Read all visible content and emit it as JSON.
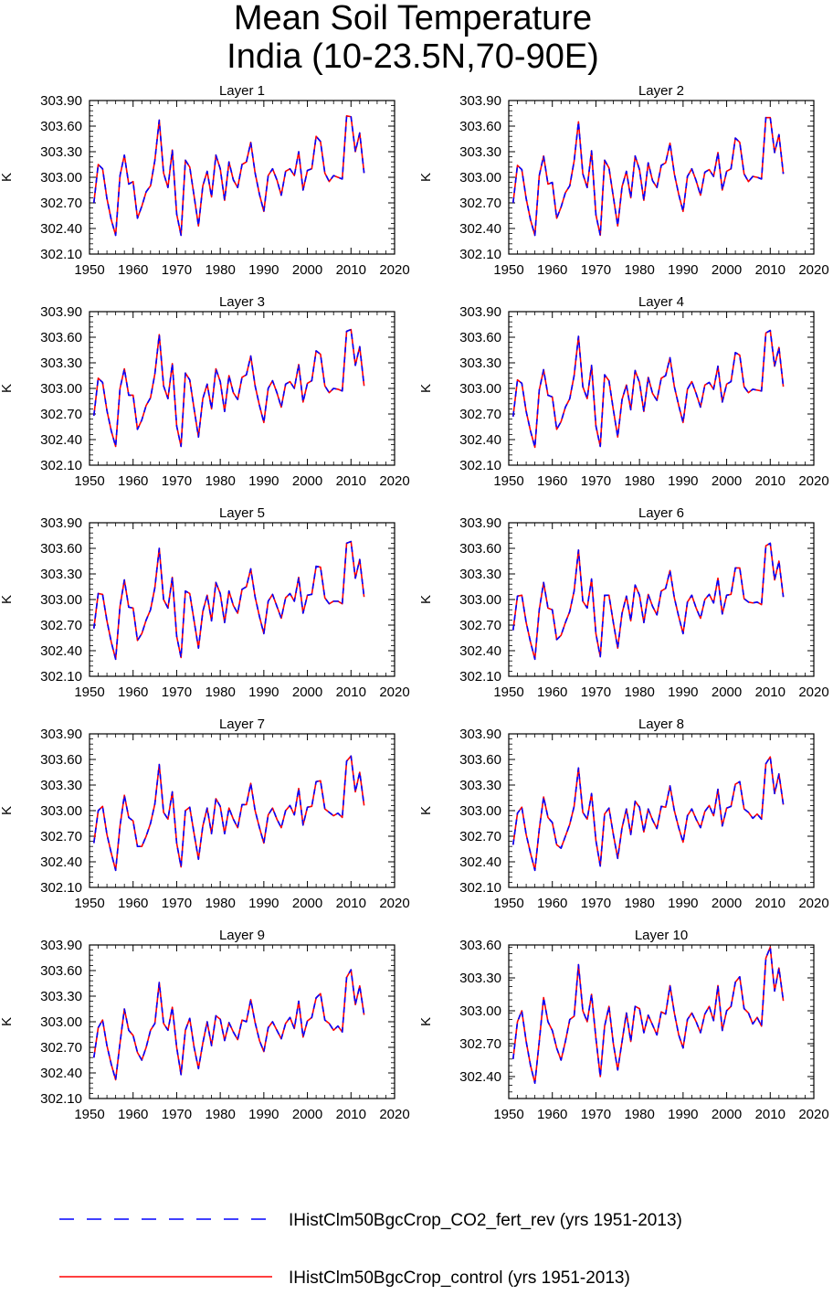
{
  "figure": {
    "title_line1": "Mean Soil Temperature",
    "title_line2": "India (10-23.5N,70-90E)"
  },
  "legend": {
    "entries": [
      {
        "label": "IHistClm50BgcCrop_CO2_fert_rev (yrs 1951-2013)",
        "color": "#0000ff",
        "style": "dashed"
      },
      {
        "label": "IHistClm50BgcCrop_control (yrs 1951-2013)",
        "color": "#ff0000",
        "style": "solid"
      }
    ]
  },
  "chart_data": [
    {
      "type": "line",
      "title": "Layer 1",
      "ylabel": "K",
      "xlim": [
        1950,
        2020
      ],
      "ylim": [
        302.1,
        303.9
      ],
      "xticks": [
        "1950",
        "1960",
        "1970",
        "1980",
        "1990",
        "2000",
        "2010",
        "2020"
      ],
      "yticks": [
        "302.10",
        "302.40",
        "302.70",
        "303.00",
        "303.30",
        "303.60",
        "303.90"
      ],
      "x_start": 1951,
      "series": [
        {
          "values": [
            302.7,
            303.15,
            303.1,
            302.75,
            302.5,
            302.32,
            303.02,
            303.26,
            302.92,
            302.95,
            302.52,
            302.66,
            302.83,
            302.9,
            303.2,
            303.67,
            303.05,
            302.88,
            303.32,
            302.57,
            302.32,
            303.2,
            303.12,
            302.78,
            302.43,
            302.9,
            303.07,
            302.77,
            303.26,
            303.1,
            302.73,
            303.18,
            302.97,
            302.88,
            303.15,
            303.18,
            303.41,
            303.05,
            302.8,
            302.6,
            303.02,
            303.1,
            302.97,
            302.79,
            303.07,
            303.1,
            303.02,
            303.3,
            302.85,
            303.08,
            303.1,
            303.48,
            303.42,
            303.05,
            302.95,
            303.02,
            303.0,
            302.98,
            303.72,
            303.71,
            303.3,
            303.52,
            303.05
          ]
        }
      ]
    },
    {
      "type": "line",
      "title": "Layer 2",
      "ylabel": "K",
      "xlim": [
        1950,
        2020
      ],
      "ylim": [
        302.1,
        303.9
      ],
      "xticks": [
        "1950",
        "1960",
        "1970",
        "1980",
        "1990",
        "2000",
        "2010",
        "2020"
      ],
      "yticks": [
        "302.10",
        "302.40",
        "302.70",
        "303.00",
        "303.30",
        "303.60",
        "303.90"
      ],
      "x_start": 1951,
      "series": [
        {
          "values": [
            302.7,
            303.14,
            303.09,
            302.75,
            302.5,
            302.32,
            303.02,
            303.25,
            302.92,
            302.94,
            302.52,
            302.65,
            302.82,
            302.9,
            303.19,
            303.65,
            303.04,
            302.88,
            303.31,
            302.56,
            302.32,
            303.2,
            303.11,
            302.77,
            302.43,
            302.89,
            303.07,
            302.76,
            303.25,
            303.09,
            302.73,
            303.17,
            302.96,
            302.88,
            303.14,
            303.17,
            303.4,
            303.04,
            302.8,
            302.6,
            303.01,
            303.1,
            302.96,
            302.79,
            303.06,
            303.09,
            303.01,
            303.29,
            302.85,
            303.07,
            303.1,
            303.46,
            303.41,
            303.04,
            302.95,
            303.01,
            303.0,
            302.98,
            303.7,
            303.7,
            303.29,
            303.5,
            303.04
          ]
        }
      ]
    },
    {
      "type": "line",
      "title": "Layer 3",
      "ylabel": "K",
      "xlim": [
        1950,
        2020
      ],
      "ylim": [
        302.1,
        303.9
      ],
      "xticks": [
        "1950",
        "1960",
        "1970",
        "1980",
        "1990",
        "2000",
        "2010",
        "2020"
      ],
      "yticks": [
        "302.10",
        "302.40",
        "302.70",
        "303.00",
        "303.30",
        "303.60",
        "303.90"
      ],
      "x_start": 1951,
      "series": [
        {
          "values": [
            302.68,
            303.12,
            303.07,
            302.74,
            302.5,
            302.32,
            303.0,
            303.23,
            302.92,
            302.92,
            302.52,
            302.63,
            302.8,
            302.89,
            303.17,
            303.63,
            303.03,
            302.88,
            303.29,
            302.56,
            302.32,
            303.18,
            303.1,
            302.76,
            302.43,
            302.88,
            303.05,
            302.76,
            303.23,
            303.08,
            302.73,
            303.15,
            302.95,
            302.87,
            303.13,
            303.16,
            303.38,
            303.03,
            302.8,
            302.6,
            303.0,
            303.09,
            302.95,
            302.78,
            303.05,
            303.08,
            303.0,
            303.28,
            302.84,
            303.06,
            303.09,
            303.44,
            303.4,
            303.03,
            302.95,
            303.0,
            302.99,
            302.97,
            303.67,
            303.69,
            303.27,
            303.49,
            303.03
          ]
        }
      ]
    },
    {
      "type": "line",
      "title": "Layer 4",
      "ylabel": "K",
      "xlim": [
        1950,
        2020
      ],
      "ylim": [
        302.1,
        303.9
      ],
      "xticks": [
        "1950",
        "1960",
        "1970",
        "1980",
        "1990",
        "2000",
        "2010",
        "2020"
      ],
      "yticks": [
        "302.10",
        "302.40",
        "302.70",
        "303.00",
        "303.30",
        "303.60",
        "303.90"
      ],
      "x_start": 1951,
      "series": [
        {
          "values": [
            302.67,
            303.1,
            303.06,
            302.73,
            302.5,
            302.31,
            302.98,
            303.22,
            302.92,
            302.9,
            302.52,
            302.61,
            302.78,
            302.88,
            303.15,
            303.61,
            303.02,
            302.88,
            303.27,
            302.56,
            302.32,
            303.16,
            303.09,
            302.75,
            302.43,
            302.87,
            303.04,
            302.75,
            303.21,
            303.07,
            302.73,
            303.13,
            302.94,
            302.86,
            303.12,
            303.15,
            303.36,
            303.02,
            302.8,
            302.6,
            302.99,
            303.08,
            302.94,
            302.78,
            303.04,
            303.07,
            302.99,
            303.26,
            302.84,
            303.05,
            303.08,
            303.42,
            303.39,
            303.02,
            302.95,
            302.99,
            302.98,
            302.97,
            303.65,
            303.68,
            303.26,
            303.48,
            303.02
          ]
        }
      ]
    },
    {
      "type": "line",
      "title": "Layer 5",
      "ylabel": "K",
      "xlim": [
        1950,
        2020
      ],
      "ylim": [
        302.1,
        303.9
      ],
      "xticks": [
        "1950",
        "1960",
        "1970",
        "1980",
        "1990",
        "2000",
        "2010",
        "2020"
      ],
      "yticks": [
        "302.10",
        "302.40",
        "302.70",
        "303.00",
        "303.30",
        "303.60",
        "303.90"
      ],
      "x_start": 1951,
      "series": [
        {
          "values": [
            302.66,
            303.07,
            303.06,
            302.75,
            302.5,
            302.3,
            302.92,
            303.23,
            302.91,
            302.9,
            302.52,
            302.6,
            302.76,
            302.88,
            303.14,
            303.6,
            303.0,
            302.9,
            303.26,
            302.57,
            302.32,
            303.1,
            303.07,
            302.75,
            302.43,
            302.86,
            303.05,
            302.75,
            303.2,
            303.07,
            302.73,
            303.1,
            302.93,
            302.84,
            303.12,
            303.15,
            303.36,
            303.03,
            302.8,
            302.6,
            302.98,
            303.06,
            302.92,
            302.78,
            303.02,
            303.07,
            302.98,
            303.26,
            302.84,
            303.05,
            303.06,
            303.39,
            303.38,
            303.02,
            302.95,
            302.98,
            302.98,
            302.95,
            303.66,
            303.68,
            303.25,
            303.47,
            303.03
          ]
        }
      ]
    },
    {
      "type": "line",
      "title": "Layer 6",
      "ylabel": "K",
      "xlim": [
        1950,
        2020
      ],
      "ylim": [
        302.1,
        303.9
      ],
      "xticks": [
        "1950",
        "1960",
        "1970",
        "1980",
        "1990",
        "2000",
        "2010",
        "2020"
      ],
      "yticks": [
        "302.10",
        "302.40",
        "302.70",
        "303.00",
        "303.30",
        "303.60",
        "303.90"
      ],
      "x_start": 1951,
      "series": [
        {
          "values": [
            302.64,
            303.04,
            303.05,
            302.73,
            302.5,
            302.3,
            302.88,
            303.2,
            302.9,
            302.88,
            302.53,
            302.58,
            302.73,
            302.86,
            303.1,
            303.58,
            302.98,
            302.9,
            303.24,
            302.6,
            302.33,
            303.05,
            303.05,
            302.73,
            302.43,
            302.84,
            303.04,
            302.75,
            303.17,
            303.05,
            302.73,
            303.06,
            302.92,
            302.82,
            303.1,
            303.13,
            303.34,
            303.02,
            302.8,
            302.6,
            302.97,
            303.05,
            302.9,
            302.78,
            303.0,
            303.06,
            302.96,
            303.25,
            302.83,
            303.05,
            303.06,
            303.37,
            303.37,
            303.01,
            302.97,
            302.96,
            302.97,
            302.94,
            303.63,
            303.66,
            303.23,
            303.45,
            303.03
          ]
        }
      ]
    },
    {
      "type": "line",
      "title": "Layer 7",
      "ylabel": "K",
      "xlim": [
        1950,
        2020
      ],
      "ylim": [
        302.1,
        303.9
      ],
      "xticks": [
        "1950",
        "1960",
        "1970",
        "1980",
        "1990",
        "2000",
        "2010",
        "2020"
      ],
      "yticks": [
        "302.10",
        "302.40",
        "302.70",
        "303.00",
        "303.30",
        "303.60",
        "303.90"
      ],
      "x_start": 1951,
      "series": [
        {
          "values": [
            302.62,
            303.0,
            303.05,
            302.72,
            302.5,
            302.3,
            302.82,
            303.18,
            302.92,
            302.88,
            302.58,
            302.58,
            302.7,
            302.85,
            303.08,
            303.54,
            302.98,
            302.9,
            303.22,
            302.62,
            302.34,
            303.0,
            303.04,
            302.73,
            302.43,
            302.82,
            303.03,
            302.73,
            303.14,
            303.05,
            302.73,
            303.03,
            302.9,
            302.8,
            303.07,
            303.07,
            303.32,
            303.0,
            302.8,
            302.62,
            302.95,
            303.03,
            302.9,
            302.8,
            303.0,
            303.06,
            302.95,
            303.26,
            302.83,
            303.04,
            303.05,
            303.34,
            303.35,
            303.02,
            302.98,
            302.94,
            302.97,
            302.92,
            303.58,
            303.64,
            303.22,
            303.45,
            303.06
          ]
        }
      ]
    },
    {
      "type": "line",
      "title": "Layer 8",
      "ylabel": "K",
      "xlim": [
        1950,
        2020
      ],
      "ylim": [
        302.1,
        303.9
      ],
      "xticks": [
        "1950",
        "1960",
        "1970",
        "1980",
        "1990",
        "2000",
        "2010",
        "2020"
      ],
      "yticks": [
        "302.10",
        "302.40",
        "302.70",
        "303.00",
        "303.30",
        "303.60",
        "303.90"
      ],
      "x_start": 1951,
      "series": [
        {
          "values": [
            302.6,
            302.97,
            303.04,
            302.72,
            302.5,
            302.3,
            302.78,
            303.16,
            302.92,
            302.86,
            302.6,
            302.56,
            302.7,
            302.84,
            303.05,
            303.5,
            302.98,
            302.9,
            303.2,
            302.65,
            302.35,
            302.96,
            303.03,
            302.72,
            302.44,
            302.8,
            303.02,
            302.72,
            303.11,
            303.04,
            302.75,
            303.02,
            302.89,
            302.79,
            303.05,
            303.04,
            303.29,
            303.0,
            302.8,
            302.63,
            302.94,
            303.02,
            302.9,
            302.8,
            302.99,
            303.06,
            302.94,
            303.25,
            302.82,
            303.03,
            303.05,
            303.31,
            303.34,
            303.02,
            302.98,
            302.91,
            302.96,
            302.9,
            303.55,
            303.63,
            303.2,
            303.43,
            303.07
          ]
        }
      ]
    },
    {
      "type": "line",
      "title": "Layer 9",
      "ylabel": "K",
      "xlim": [
        1950,
        2020
      ],
      "ylim": [
        302.1,
        303.9
      ],
      "xticks": [
        "1950",
        "1960",
        "1970",
        "1980",
        "1990",
        "2000",
        "2010",
        "2020"
      ],
      "yticks": [
        "302.10",
        "302.40",
        "302.70",
        "303.00",
        "303.30",
        "303.60",
        "303.90"
      ],
      "x_start": 1951,
      "series": [
        {
          "values": [
            302.58,
            302.93,
            303.02,
            302.72,
            302.5,
            302.32,
            302.75,
            303.15,
            302.9,
            302.84,
            302.64,
            302.55,
            302.7,
            302.9,
            302.98,
            303.46,
            302.98,
            302.9,
            303.17,
            302.7,
            302.38,
            302.9,
            303.04,
            302.7,
            302.45,
            302.75,
            303.0,
            302.72,
            303.07,
            303.03,
            302.78,
            302.99,
            302.88,
            302.79,
            303.02,
            303.0,
            303.26,
            302.99,
            302.78,
            302.65,
            302.93,
            303.0,
            302.9,
            302.8,
            302.98,
            303.05,
            302.92,
            303.24,
            302.82,
            303.01,
            303.05,
            303.28,
            303.33,
            303.02,
            302.98,
            302.9,
            302.95,
            302.88,
            303.52,
            303.61,
            303.2,
            303.42,
            303.08
          ]
        }
      ]
    },
    {
      "type": "line",
      "title": "Layer 10",
      "ylabel": "K",
      "xlim": [
        1950,
        2020
      ],
      "ylim": [
        302.2,
        303.6
      ],
      "xticks": [
        "1950",
        "1960",
        "1970",
        "1980",
        "1990",
        "2000",
        "2010",
        "2020"
      ],
      "yticks": [
        "302.40",
        "302.70",
        "303.00",
        "303.30",
        "303.60"
      ],
      "x_start": 1951,
      "series": [
        {
          "values": [
            302.56,
            302.9,
            303.0,
            302.72,
            302.5,
            302.34,
            302.72,
            303.12,
            302.9,
            302.82,
            302.66,
            302.55,
            302.72,
            302.92,
            302.95,
            303.42,
            303.0,
            302.9,
            303.15,
            302.75,
            302.4,
            302.86,
            303.04,
            302.7,
            302.46,
            302.72,
            302.98,
            302.72,
            303.04,
            303.02,
            302.8,
            302.96,
            302.87,
            302.78,
            302.99,
            302.97,
            303.23,
            302.98,
            302.78,
            302.66,
            302.92,
            302.98,
            302.9,
            302.8,
            302.97,
            303.04,
            302.91,
            303.23,
            302.82,
            303.0,
            303.04,
            303.26,
            303.31,
            303.02,
            302.98,
            302.88,
            302.94,
            302.86,
            303.48,
            303.58,
            303.18,
            303.39,
            303.09
          ]
        }
      ]
    }
  ]
}
